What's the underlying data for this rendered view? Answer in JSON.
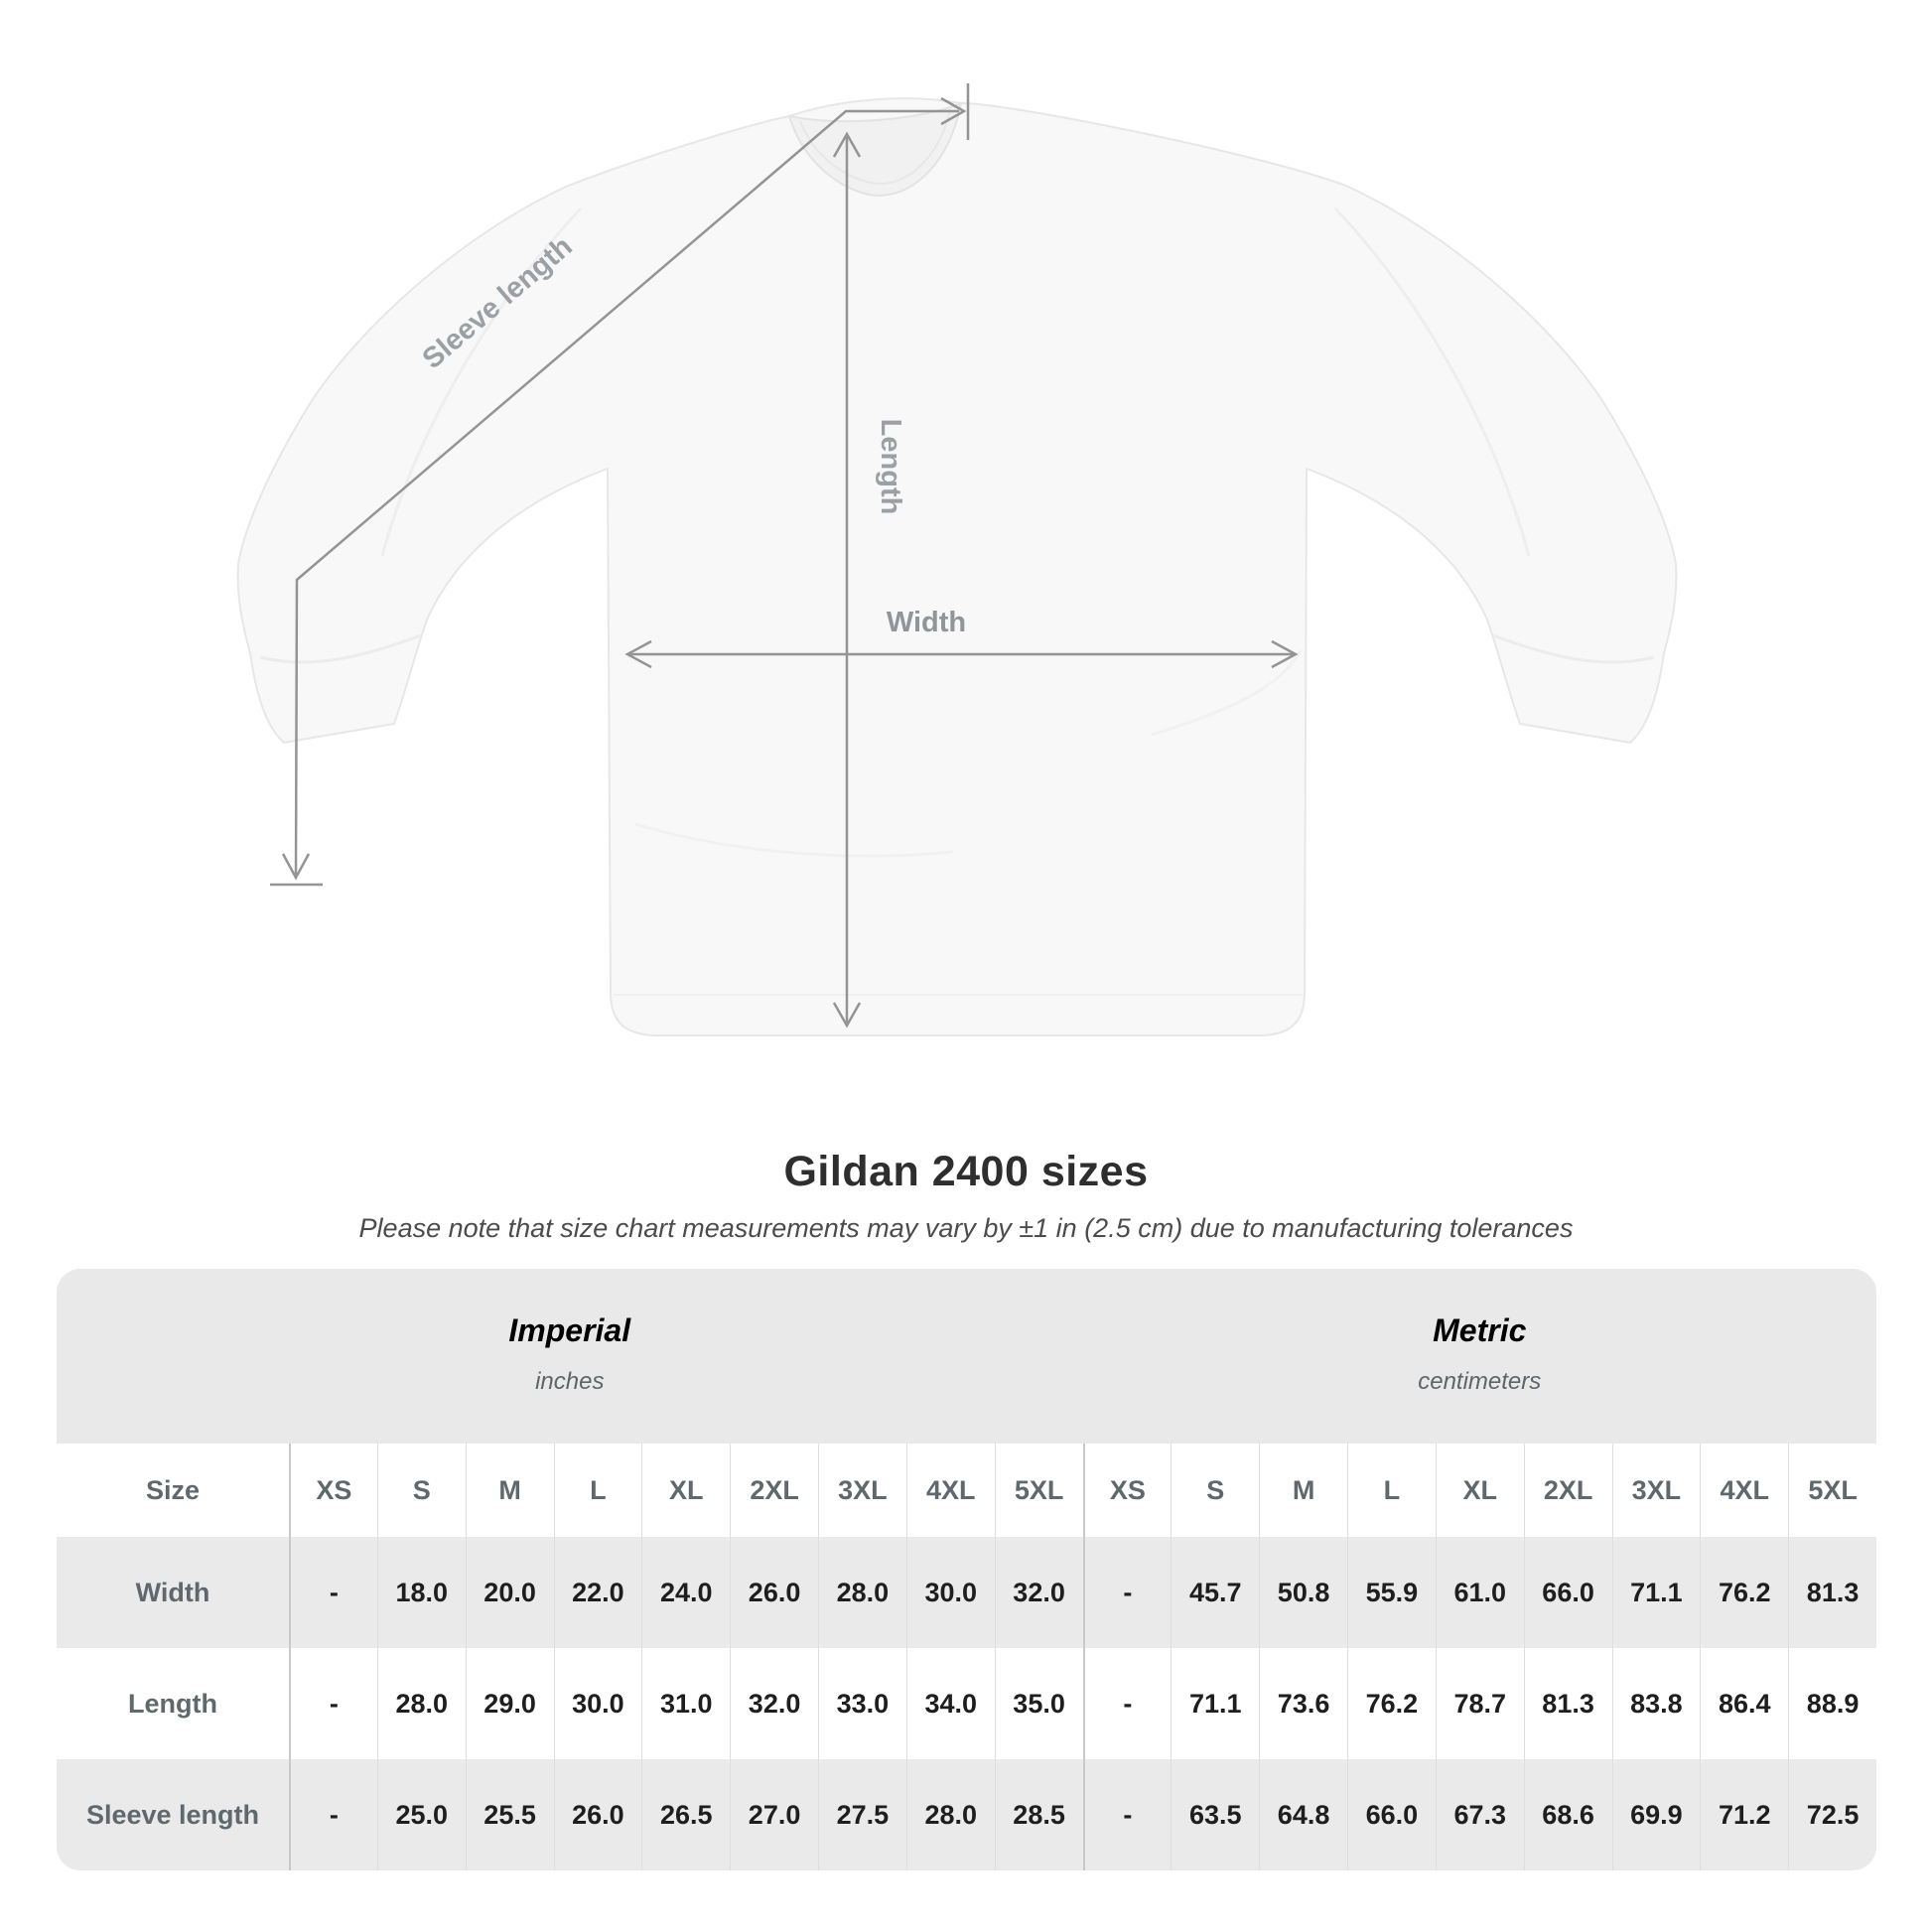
{
  "diagram": {
    "labels": {
      "sleeve": "Sleeve length",
      "length": "Length",
      "width": "Width"
    }
  },
  "title": "Gildan 2400 sizes",
  "subtitle": "Please note that size chart measurements may vary by ±1 in (2.5 cm) due to manufacturing tolerances",
  "table": {
    "size_label": "Size",
    "unit_groups": [
      {
        "name": "Imperial",
        "unit": "inches"
      },
      {
        "name": "Metric",
        "unit": "centimeters"
      }
    ],
    "sizes": [
      "XS",
      "S",
      "M",
      "L",
      "XL",
      "2XL",
      "3XL",
      "4XL",
      "5XL"
    ],
    "rows": [
      {
        "label": "Width",
        "imperial": [
          "-",
          "18.0",
          "20.0",
          "22.0",
          "24.0",
          "26.0",
          "28.0",
          "30.0",
          "32.0"
        ],
        "metric": [
          "-",
          "45.7",
          "50.8",
          "55.9",
          "61.0",
          "66.0",
          "71.1",
          "76.2",
          "81.3"
        ]
      },
      {
        "label": "Length",
        "imperial": [
          "-",
          "28.0",
          "29.0",
          "30.0",
          "31.0",
          "32.0",
          "33.0",
          "34.0",
          "35.0"
        ],
        "metric": [
          "-",
          "71.1",
          "73.6",
          "76.2",
          "78.7",
          "81.3",
          "83.8",
          "86.4",
          "88.9"
        ]
      },
      {
        "label": "Sleeve length",
        "imperial": [
          "-",
          "25.0",
          "25.5",
          "26.0",
          "26.5",
          "27.0",
          "27.5",
          "28.0",
          "28.5"
        ],
        "metric": [
          "-",
          "63.5",
          "64.8",
          "66.0",
          "67.3",
          "68.6",
          "69.9",
          "71.2",
          "72.5"
        ]
      }
    ]
  },
  "chart_data": {
    "type": "table",
    "title": "Gildan 2400 sizes",
    "columns": [
      "XS",
      "S",
      "M",
      "L",
      "XL",
      "2XL",
      "3XL",
      "4XL",
      "5XL"
    ],
    "series": [
      {
        "name": "Width (in)",
        "values": [
          null,
          18.0,
          20.0,
          22.0,
          24.0,
          26.0,
          28.0,
          30.0,
          32.0
        ]
      },
      {
        "name": "Length (in)",
        "values": [
          null,
          28.0,
          29.0,
          30.0,
          31.0,
          32.0,
          33.0,
          34.0,
          35.0
        ]
      },
      {
        "name": "Sleeve length (in)",
        "values": [
          null,
          25.0,
          25.5,
          26.0,
          26.5,
          27.0,
          27.5,
          28.0,
          28.5
        ]
      },
      {
        "name": "Width (cm)",
        "values": [
          null,
          45.7,
          50.8,
          55.9,
          61.0,
          66.0,
          71.1,
          76.2,
          81.3
        ]
      },
      {
        "name": "Length (cm)",
        "values": [
          null,
          71.1,
          73.6,
          76.2,
          78.7,
          81.3,
          83.8,
          86.4,
          88.9
        ]
      },
      {
        "name": "Sleeve length (cm)",
        "values": [
          null,
          63.5,
          64.8,
          66.0,
          67.3,
          68.6,
          69.9,
          71.2,
          72.5
        ]
      }
    ]
  },
  "colors": {
    "page_background": "#ffffff",
    "table_band": "#e9e9e9",
    "row_alternate": "#eaeaea",
    "separator": "#dedede",
    "separator_strong": "#c9c9c9",
    "annotation_gray": "#9aa0a3",
    "label_slate": "#5f696d",
    "value_text": "#1e1e1e",
    "title_text": "#2e2e2e"
  }
}
